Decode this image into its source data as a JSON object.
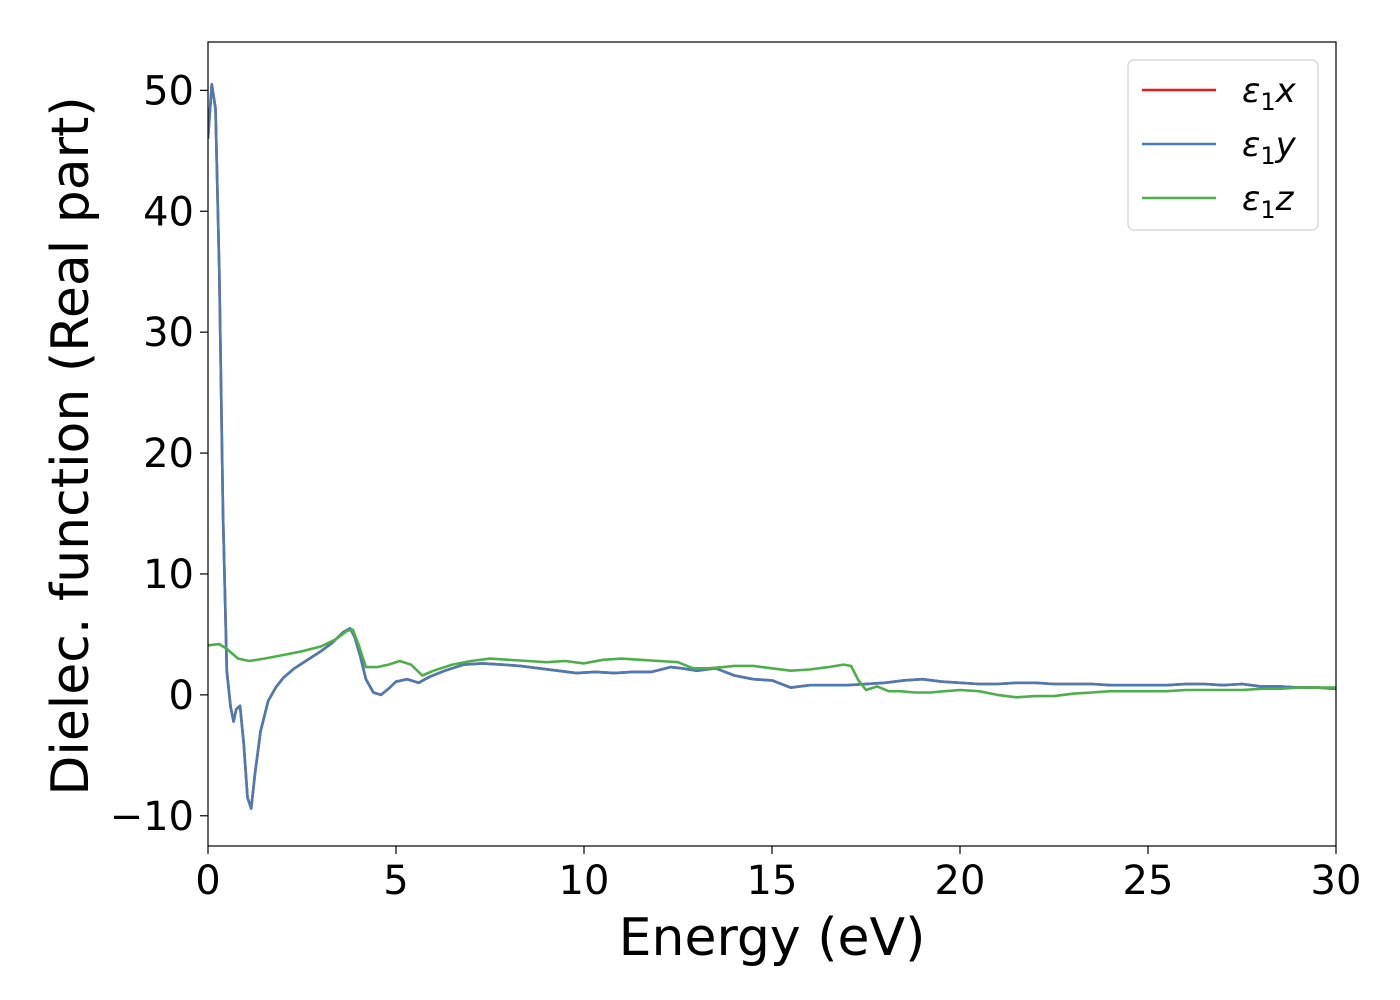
{
  "chart_data": {
    "type": "line",
    "title": "",
    "xlabel": "Energy (eV)",
    "ylabel": "Dielec. function (Real part)",
    "xlim": [
      0,
      30
    ],
    "ylim": [
      -12.5,
      54
    ],
    "xticks": [
      0,
      5,
      10,
      15,
      20,
      25,
      30
    ],
    "yticks": [
      -10,
      0,
      10,
      20,
      30,
      40,
      50
    ],
    "ytick_labels": [
      "−10",
      "0",
      "10",
      "20",
      "30",
      "40",
      "50"
    ],
    "grid": false,
    "legend_position": "top-right",
    "series": [
      {
        "name": "ε1x",
        "legend_main": "ε",
        "legend_sub": "1",
        "legend_var": "x",
        "color": "#e41a1c",
        "x": [
          0,
          0.1,
          0.2,
          0.3,
          0.4,
          0.5,
          0.6,
          0.68,
          0.75,
          0.85,
          0.95,
          1.05,
          1.15,
          1.25,
          1.4,
          1.6,
          1.8,
          2.0,
          2.3,
          2.6,
          3.0,
          3.3,
          3.6,
          3.78,
          3.9,
          4.05,
          4.2,
          4.4,
          4.6,
          4.8,
          5.0,
          5.3,
          5.6,
          5.9,
          6.3,
          6.8,
          7.3,
          7.8,
          8.3,
          8.8,
          9.3,
          9.8,
          10.3,
          10.8,
          11.3,
          11.8,
          12.3,
          12.6,
          13.0,
          13.5,
          14.0,
          14.5,
          15.0,
          15.5,
          16.0,
          16.5,
          17.0,
          17.5,
          18.0,
          18.5,
          19.0,
          19.5,
          20.0,
          20.5,
          21.0,
          21.5,
          22.0,
          22.5,
          23.0,
          23.5,
          24.0,
          24.5,
          25.0,
          25.5,
          26.0,
          26.5,
          27.0,
          27.5,
          28.0,
          28.5,
          29.0,
          29.5,
          30.0
        ],
        "y": [
          46.0,
          50.5,
          48.5,
          35.0,
          15.0,
          2.0,
          -1.0,
          -2.2,
          -1.2,
          -0.9,
          -4.0,
          -8.5,
          -9.4,
          -6.5,
          -3.0,
          -0.5,
          0.6,
          1.4,
          2.2,
          2.8,
          3.6,
          4.3,
          5.2,
          5.5,
          4.8,
          3.2,
          1.3,
          0.2,
          0.0,
          0.5,
          1.1,
          1.3,
          1.0,
          1.5,
          2.0,
          2.5,
          2.6,
          2.5,
          2.4,
          2.2,
          2.0,
          1.8,
          1.9,
          1.8,
          1.9,
          1.9,
          2.3,
          2.2,
          2.0,
          2.2,
          1.6,
          1.3,
          1.2,
          0.6,
          0.8,
          0.8,
          0.8,
          0.9,
          1.0,
          1.2,
          1.3,
          1.1,
          1.0,
          0.9,
          0.9,
          1.0,
          1.0,
          0.9,
          0.9,
          0.9,
          0.8,
          0.8,
          0.8,
          0.8,
          0.9,
          0.9,
          0.8,
          0.9,
          0.7,
          0.7,
          0.6,
          0.6,
          0.5
        ]
      },
      {
        "name": "ε1y",
        "legend_main": "ε",
        "legend_sub": "1",
        "legend_var": "y",
        "color": "#4a7bb5",
        "x": [
          0,
          0.1,
          0.2,
          0.3,
          0.4,
          0.5,
          0.6,
          0.68,
          0.75,
          0.85,
          0.95,
          1.05,
          1.15,
          1.25,
          1.4,
          1.6,
          1.8,
          2.0,
          2.3,
          2.6,
          3.0,
          3.3,
          3.6,
          3.78,
          3.9,
          4.05,
          4.2,
          4.4,
          4.6,
          4.8,
          5.0,
          5.3,
          5.6,
          5.9,
          6.3,
          6.8,
          7.3,
          7.8,
          8.3,
          8.8,
          9.3,
          9.8,
          10.3,
          10.8,
          11.3,
          11.8,
          12.3,
          12.6,
          13.0,
          13.5,
          14.0,
          14.5,
          15.0,
          15.5,
          16.0,
          16.5,
          17.0,
          17.5,
          18.0,
          18.5,
          19.0,
          19.5,
          20.0,
          20.5,
          21.0,
          21.5,
          22.0,
          22.5,
          23.0,
          23.5,
          24.0,
          24.5,
          25.0,
          25.5,
          26.0,
          26.5,
          27.0,
          27.5,
          28.0,
          28.5,
          29.0,
          29.5,
          30.0
        ],
        "y": [
          46.0,
          50.5,
          48.5,
          35.0,
          15.0,
          2.0,
          -1.0,
          -2.2,
          -1.2,
          -0.9,
          -4.0,
          -8.5,
          -9.4,
          -6.5,
          -3.0,
          -0.5,
          0.6,
          1.4,
          2.2,
          2.8,
          3.6,
          4.3,
          5.2,
          5.5,
          4.8,
          3.2,
          1.3,
          0.2,
          0.0,
          0.5,
          1.1,
          1.3,
          1.0,
          1.5,
          2.0,
          2.5,
          2.6,
          2.5,
          2.4,
          2.2,
          2.0,
          1.8,
          1.9,
          1.8,
          1.9,
          1.9,
          2.3,
          2.2,
          2.0,
          2.2,
          1.6,
          1.3,
          1.2,
          0.6,
          0.8,
          0.8,
          0.8,
          0.9,
          1.0,
          1.2,
          1.3,
          1.1,
          1.0,
          0.9,
          0.9,
          1.0,
          1.0,
          0.9,
          0.9,
          0.9,
          0.8,
          0.8,
          0.8,
          0.8,
          0.9,
          0.9,
          0.8,
          0.9,
          0.7,
          0.7,
          0.6,
          0.6,
          0.5
        ]
      },
      {
        "name": "ε1z",
        "legend_main": "ε",
        "legend_sub": "1",
        "legend_var": "z",
        "color": "#4daf4a",
        "x": [
          0,
          0.3,
          0.5,
          0.8,
          1.1,
          1.5,
          2.0,
          2.5,
          3.0,
          3.4,
          3.7,
          3.85,
          4.0,
          4.2,
          4.5,
          4.8,
          5.1,
          5.4,
          5.7,
          6.0,
          6.5,
          7.0,
          7.5,
          8.0,
          8.5,
          9.0,
          9.5,
          10.0,
          10.5,
          11.0,
          11.5,
          12.0,
          12.5,
          12.9,
          13.3,
          13.7,
          14.0,
          14.5,
          15.0,
          15.5,
          16.0,
          16.5,
          16.9,
          17.1,
          17.3,
          17.5,
          17.8,
          18.1,
          18.4,
          18.8,
          19.2,
          19.6,
          20.0,
          20.5,
          21.0,
          21.5,
          22.0,
          22.5,
          23.0,
          23.5,
          24.0,
          24.5,
          25.0,
          25.5,
          26.0,
          26.5,
          27.0,
          27.5,
          28.0,
          28.5,
          29.0,
          29.5,
          30.0
        ],
        "y": [
          4.1,
          4.2,
          3.8,
          3.0,
          2.8,
          3.0,
          3.3,
          3.6,
          4.0,
          4.6,
          5.3,
          5.4,
          4.2,
          2.3,
          2.3,
          2.5,
          2.8,
          2.5,
          1.6,
          2.0,
          2.5,
          2.8,
          3.0,
          2.9,
          2.8,
          2.7,
          2.8,
          2.6,
          2.9,
          3.0,
          2.9,
          2.8,
          2.7,
          2.2,
          2.2,
          2.3,
          2.4,
          2.4,
          2.2,
          2.0,
          2.1,
          2.3,
          2.5,
          2.4,
          1.2,
          0.4,
          0.7,
          0.3,
          0.3,
          0.2,
          0.2,
          0.3,
          0.4,
          0.3,
          0.0,
          -0.2,
          -0.1,
          -0.1,
          0.1,
          0.2,
          0.3,
          0.3,
          0.3,
          0.3,
          0.4,
          0.4,
          0.4,
          0.4,
          0.5,
          0.5,
          0.6,
          0.6,
          0.6
        ]
      }
    ]
  }
}
